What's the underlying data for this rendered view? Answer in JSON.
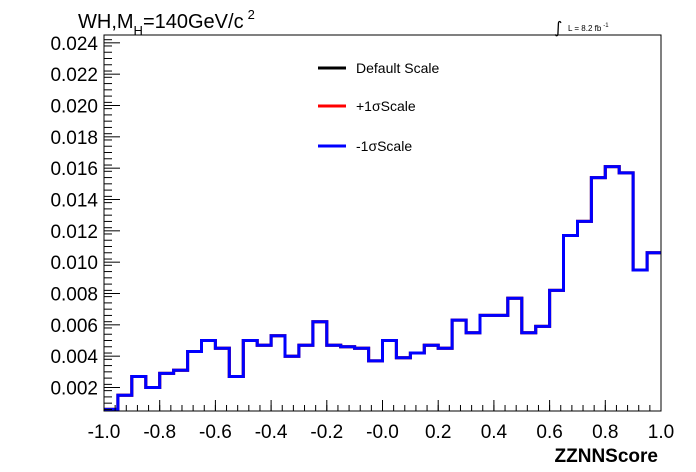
{
  "chart_data": {
    "type": "line",
    "title_main": "WH,M",
    "title_sub": "H",
    "title_rest": "=140GeV/c",
    "title_sup": "2",
    "lumi_label": "L = 8.2 fb",
    "lumi_sup": "-1",
    "xlabel": "ZZNNScore",
    "ylabel": "",
    "xlim": [
      -1.0,
      1.0
    ],
    "ylim": [
      0.0005,
      0.0245
    ],
    "xticks": [
      "-1.0",
      "-0.8",
      "-0.6",
      "-0.4",
      "-0.2",
      "-0.0",
      "0.2",
      "0.4",
      "0.6",
      "0.8",
      "1.0"
    ],
    "yticks": [
      "0.002",
      "0.004",
      "0.006",
      "0.008",
      "0.010",
      "0.012",
      "0.014",
      "0.016",
      "0.018",
      "0.020",
      "0.022",
      "0.024"
    ],
    "legend_position": "top-center",
    "bin_edges": [
      -1.0,
      -0.95,
      -0.9,
      -0.85,
      -0.8,
      -0.75,
      -0.7,
      -0.65,
      -0.6,
      -0.55,
      -0.5,
      -0.45,
      -0.4,
      -0.35,
      -0.3,
      -0.25,
      -0.2,
      -0.15,
      -0.1,
      -0.05,
      0.0,
      0.05,
      0.1,
      0.15,
      0.2,
      0.25,
      0.3,
      0.35,
      0.4,
      0.45,
      0.5,
      0.55,
      0.6,
      0.65,
      0.7,
      0.75,
      0.8,
      0.85,
      0.9,
      0.95,
      1.0
    ],
    "series": [
      {
        "name": "Default Scale",
        "color": "#000000",
        "values": [
          0.0006,
          0.0015,
          0.0027,
          0.002,
          0.0029,
          0.0031,
          0.0043,
          0.005,
          0.0045,
          0.0027,
          0.005,
          0.0047,
          0.0053,
          0.004,
          0.0047,
          0.0062,
          0.0047,
          0.0046,
          0.0045,
          0.0037,
          0.005,
          0.0039,
          0.0042,
          0.0047,
          0.0045,
          0.0063,
          0.0055,
          0.0066,
          0.0066,
          0.0077,
          0.0055,
          0.0059,
          0.0082,
          0.0117,
          0.0126,
          0.0154,
          0.0161,
          0.0157,
          0.0095,
          0.0106
        ]
      },
      {
        "name": "+1σScale",
        "color": "#ff0000",
        "values": [
          0.0006,
          0.0015,
          0.0027,
          0.002,
          0.0029,
          0.0031,
          0.0043,
          0.005,
          0.0045,
          0.0027,
          0.005,
          0.0047,
          0.0053,
          0.004,
          0.0047,
          0.0062,
          0.0047,
          0.0046,
          0.0045,
          0.0037,
          0.005,
          0.0039,
          0.0042,
          0.0047,
          0.0045,
          0.0063,
          0.0055,
          0.0066,
          0.0066,
          0.0077,
          0.0055,
          0.0059,
          0.0082,
          0.0117,
          0.0126,
          0.0154,
          0.0161,
          0.0157,
          0.0095,
          0.0106
        ]
      },
      {
        "name": "-1σScale",
        "color": "#0000ff",
        "values": [
          0.0006,
          0.0015,
          0.0027,
          0.002,
          0.0029,
          0.0031,
          0.0043,
          0.005,
          0.0045,
          0.0027,
          0.005,
          0.0047,
          0.0053,
          0.004,
          0.0047,
          0.0062,
          0.0047,
          0.0046,
          0.0045,
          0.0037,
          0.005,
          0.0039,
          0.0042,
          0.0047,
          0.0045,
          0.0063,
          0.0055,
          0.0066,
          0.0066,
          0.0077,
          0.0055,
          0.0059,
          0.0082,
          0.0117,
          0.0126,
          0.0154,
          0.0161,
          0.0157,
          0.0095,
          0.0106
        ]
      }
    ]
  }
}
